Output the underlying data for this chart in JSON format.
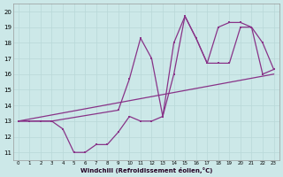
{
  "xlabel": "Windchill (Refroidissement éolien,°C)",
  "bg_color": "#cce8e8",
  "grid_color": "#b8d8d8",
  "line_color": "#883388",
  "xlim": [
    -0.5,
    23.5
  ],
  "ylim": [
    10.5,
    20.5
  ],
  "xticks": [
    0,
    1,
    2,
    3,
    4,
    5,
    6,
    7,
    8,
    9,
    10,
    11,
    12,
    13,
    14,
    15,
    16,
    17,
    18,
    19,
    20,
    21,
    22,
    23
  ],
  "yticks": [
    11,
    12,
    13,
    14,
    15,
    16,
    17,
    18,
    19,
    20
  ],
  "line1_x": [
    0,
    1,
    2,
    3,
    4,
    5,
    6,
    7,
    8,
    9,
    10,
    11,
    12,
    13,
    14,
    15,
    16,
    17,
    18,
    19,
    20,
    21,
    22,
    23
  ],
  "line1_y": [
    13,
    13,
    13,
    13,
    12.5,
    11,
    11,
    11.5,
    11.5,
    12.3,
    13.3,
    13,
    13,
    13.3,
    16,
    19.7,
    18.3,
    16.7,
    16.7,
    16.7,
    19,
    19,
    18,
    16.3
  ],
  "line2_x": [
    0,
    3,
    9,
    10,
    11,
    12,
    13,
    14,
    15,
    16,
    17,
    18,
    19,
    20,
    21,
    22,
    23
  ],
  "line2_y": [
    13,
    13,
    13.7,
    15.7,
    18.3,
    17,
    13.3,
    18,
    19.7,
    18.3,
    16.7,
    19,
    19.3,
    19.3,
    19,
    16,
    16.3
  ],
  "line3_x": [
    0,
    23
  ],
  "line3_y": [
    13,
    16
  ]
}
